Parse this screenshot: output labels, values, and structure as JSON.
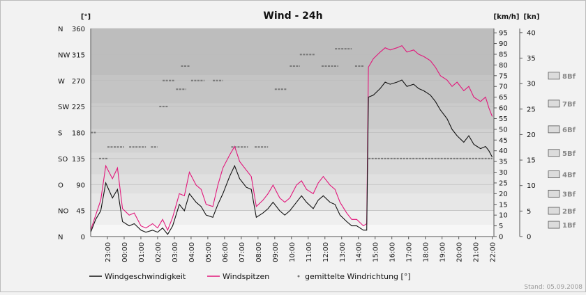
{
  "chart_data": {
    "type": "line",
    "title": "Wind  - 24h",
    "left_axis_label": "[°]",
    "kmh_axis_label": "[km/h]",
    "kn_axis_label": "[kn]",
    "direction_ticks": [
      {
        "label": "N",
        "deg": 0
      },
      {
        "label": "NO",
        "deg": 45
      },
      {
        "label": "O",
        "deg": 90
      },
      {
        "label": "SO",
        "deg": 135
      },
      {
        "label": "S",
        "deg": 180
      },
      {
        "label": "SW",
        "deg": 225
      },
      {
        "label": "W",
        "deg": 270
      },
      {
        "label": "NW",
        "deg": 315
      },
      {
        "label": "N",
        "deg": 360
      }
    ],
    "degree_ticks": [
      0,
      45,
      90,
      135,
      180,
      225,
      270,
      315,
      360
    ],
    "kmh_ticks": [
      0,
      5,
      10,
      15,
      20,
      25,
      30,
      35,
      40,
      45,
      50,
      55,
      60,
      65,
      70,
      75,
      80,
      85,
      90,
      95
    ],
    "kmh_range": [
      0,
      97
    ],
    "kn_ticks": [
      0,
      5,
      10,
      15,
      20,
      25,
      30,
      35,
      40
    ],
    "kn_range": [
      0,
      40.8
    ],
    "x_labels": [
      "23:00",
      "00:00",
      "01:00",
      "02:00",
      "03:00",
      "04:00",
      "05:00",
      "06:00",
      "07:00",
      "08:00",
      "09:00",
      "10:00",
      "11:00",
      "12:00",
      "13:00",
      "14:00",
      "15:00",
      "16:00",
      "17:00",
      "18:00",
      "19:00",
      "20:00",
      "21:00",
      "22:00"
    ],
    "x_range_hours": [
      22.0,
      46.1
    ],
    "beaufort": [
      {
        "label": "1Bf",
        "kmh": 5.5
      },
      {
        "label": "2Bf",
        "kmh": 12
      },
      {
        "label": "3Bf",
        "kmh": 20
      },
      {
        "label": "4Bf",
        "kmh": 29
      },
      {
        "label": "5Bf",
        "kmh": 39
      },
      {
        "label": "6Bf",
        "kmh": 50
      },
      {
        "label": "7Bf",
        "kmh": 62
      },
      {
        "label": "8Bf",
        "kmh": 75
      }
    ],
    "legend_position": "bottom",
    "series": [
      {
        "name": "Windgeschwindigkeit",
        "color": "#111111",
        "unit": "km/h",
        "points": [
          [
            22.0,
            2
          ],
          [
            22.3,
            8
          ],
          [
            22.6,
            12
          ],
          [
            22.9,
            25
          ],
          [
            23.3,
            18
          ],
          [
            23.6,
            22
          ],
          [
            23.9,
            7
          ],
          [
            24.3,
            5
          ],
          [
            24.6,
            6
          ],
          [
            25.0,
            3
          ],
          [
            25.3,
            2
          ],
          [
            25.7,
            3
          ],
          [
            26.0,
            2
          ],
          [
            26.3,
            4
          ],
          [
            26.6,
            1
          ],
          [
            26.9,
            5
          ],
          [
            27.3,
            15
          ],
          [
            27.6,
            12
          ],
          [
            27.9,
            20
          ],
          [
            28.3,
            16
          ],
          [
            28.6,
            14
          ],
          [
            28.9,
            10
          ],
          [
            29.3,
            9
          ],
          [
            29.6,
            15
          ],
          [
            29.9,
            20
          ],
          [
            30.3,
            28
          ],
          [
            30.6,
            33
          ],
          [
            30.9,
            27
          ],
          [
            31.3,
            23
          ],
          [
            31.6,
            22
          ],
          [
            31.9,
            9
          ],
          [
            32.3,
            11
          ],
          [
            32.6,
            13
          ],
          [
            32.9,
            16
          ],
          [
            33.3,
            12
          ],
          [
            33.6,
            10
          ],
          [
            33.9,
            12
          ],
          [
            34.3,
            16
          ],
          [
            34.6,
            19
          ],
          [
            34.9,
            16
          ],
          [
            35.3,
            13
          ],
          [
            35.6,
            17
          ],
          [
            35.9,
            19
          ],
          [
            36.3,
            16
          ],
          [
            36.6,
            15
          ],
          [
            36.9,
            10
          ],
          [
            37.3,
            7
          ],
          [
            37.6,
            5
          ],
          [
            37.9,
            5
          ],
          [
            38.3,
            3
          ],
          [
            38.5,
            3
          ],
          [
            38.6,
            65
          ],
          [
            38.9,
            66
          ],
          [
            39.3,
            69
          ],
          [
            39.6,
            72
          ],
          [
            39.9,
            71
          ],
          [
            40.3,
            72
          ],
          [
            40.6,
            73
          ],
          [
            40.9,
            70
          ],
          [
            41.3,
            71
          ],
          [
            41.6,
            69
          ],
          [
            41.9,
            68
          ],
          [
            42.3,
            66
          ],
          [
            42.6,
            63
          ],
          [
            42.9,
            59
          ],
          [
            43.3,
            55
          ],
          [
            43.6,
            50
          ],
          [
            43.9,
            47
          ],
          [
            44.3,
            44
          ],
          [
            44.6,
            47
          ],
          [
            44.9,
            43
          ],
          [
            45.3,
            41
          ],
          [
            45.6,
            42
          ],
          [
            45.8,
            40
          ],
          [
            46.0,
            37
          ]
        ]
      },
      {
        "name": "Windspitzen",
        "color": "#e2177b",
        "unit": "km/h",
        "points": [
          [
            22.0,
            3
          ],
          [
            22.3,
            10
          ],
          [
            22.6,
            17
          ],
          [
            22.9,
            33
          ],
          [
            23.3,
            27
          ],
          [
            23.6,
            32
          ],
          [
            23.9,
            13
          ],
          [
            24.3,
            10
          ],
          [
            24.6,
            11
          ],
          [
            25.0,
            5
          ],
          [
            25.3,
            4
          ],
          [
            25.7,
            6
          ],
          [
            26.0,
            4
          ],
          [
            26.3,
            8
          ],
          [
            26.6,
            3
          ],
          [
            26.9,
            9
          ],
          [
            27.3,
            20
          ],
          [
            27.6,
            19
          ],
          [
            27.9,
            30
          ],
          [
            28.3,
            24
          ],
          [
            28.6,
            22
          ],
          [
            28.9,
            15
          ],
          [
            29.3,
            14
          ],
          [
            29.6,
            24
          ],
          [
            29.9,
            32
          ],
          [
            30.3,
            38
          ],
          [
            30.6,
            42
          ],
          [
            30.9,
            35
          ],
          [
            31.3,
            31
          ],
          [
            31.6,
            28
          ],
          [
            31.9,
            14
          ],
          [
            32.3,
            17
          ],
          [
            32.6,
            20
          ],
          [
            32.9,
            24
          ],
          [
            33.3,
            18
          ],
          [
            33.6,
            16
          ],
          [
            33.9,
            18
          ],
          [
            34.3,
            24
          ],
          [
            34.6,
            26
          ],
          [
            34.9,
            22
          ],
          [
            35.3,
            20
          ],
          [
            35.6,
            25
          ],
          [
            35.9,
            28
          ],
          [
            36.3,
            24
          ],
          [
            36.6,
            22
          ],
          [
            36.9,
            16
          ],
          [
            37.3,
            11
          ],
          [
            37.6,
            8
          ],
          [
            37.9,
            8
          ],
          [
            38.3,
            5
          ],
          [
            38.5,
            6
          ],
          [
            38.6,
            79
          ],
          [
            38.9,
            83
          ],
          [
            39.3,
            86
          ],
          [
            39.6,
            88
          ],
          [
            39.9,
            87
          ],
          [
            40.3,
            88
          ],
          [
            40.6,
            89
          ],
          [
            40.9,
            86
          ],
          [
            41.3,
            87
          ],
          [
            41.6,
            85
          ],
          [
            41.9,
            84
          ],
          [
            42.3,
            82
          ],
          [
            42.6,
            79
          ],
          [
            42.9,
            75
          ],
          [
            43.3,
            73
          ],
          [
            43.6,
            70
          ],
          [
            43.9,
            72
          ],
          [
            44.3,
            68
          ],
          [
            44.6,
            70
          ],
          [
            44.9,
            65
          ],
          [
            45.3,
            63
          ],
          [
            45.6,
            65
          ],
          [
            45.8,
            60
          ],
          [
            46.0,
            56
          ]
        ]
      },
      {
        "name": "gemittelte Windrichtung [°]",
        "color": "#777777",
        "unit": "deg",
        "segments": [
          [
            22.0,
            22.3,
            180
          ],
          [
            22.5,
            23.0,
            135
          ],
          [
            23.0,
            24.0,
            155
          ],
          [
            24.3,
            25.3,
            155
          ],
          [
            25.6,
            26.0,
            155
          ],
          [
            26.1,
            26.6,
            225
          ],
          [
            26.3,
            27.0,
            270
          ],
          [
            27.1,
            27.7,
            255
          ],
          [
            27.4,
            27.9,
            295
          ],
          [
            28.0,
            28.8,
            270
          ],
          [
            29.3,
            29.9,
            270
          ],
          [
            30.4,
            31.4,
            155
          ],
          [
            31.8,
            32.6,
            155
          ],
          [
            33.0,
            33.7,
            255
          ],
          [
            33.9,
            34.5,
            295
          ],
          [
            34.5,
            35.4,
            315
          ],
          [
            35.8,
            36.8,
            295
          ],
          [
            36.6,
            37.6,
            325
          ],
          [
            37.8,
            38.3,
            295
          ],
          [
            38.6,
            46.0,
            135
          ]
        ]
      }
    ]
  },
  "legend": [
    {
      "label": "Windgeschwindigkeit",
      "color": "#111111",
      "kind": "line"
    },
    {
      "label": "Windspitzen",
      "color": "#e2177b",
      "kind": "line"
    },
    {
      "label": "gemittelte Windrichtung [°]",
      "color": "#777777",
      "kind": "dot"
    }
  ],
  "stand": "Stand: 05.09.2008"
}
